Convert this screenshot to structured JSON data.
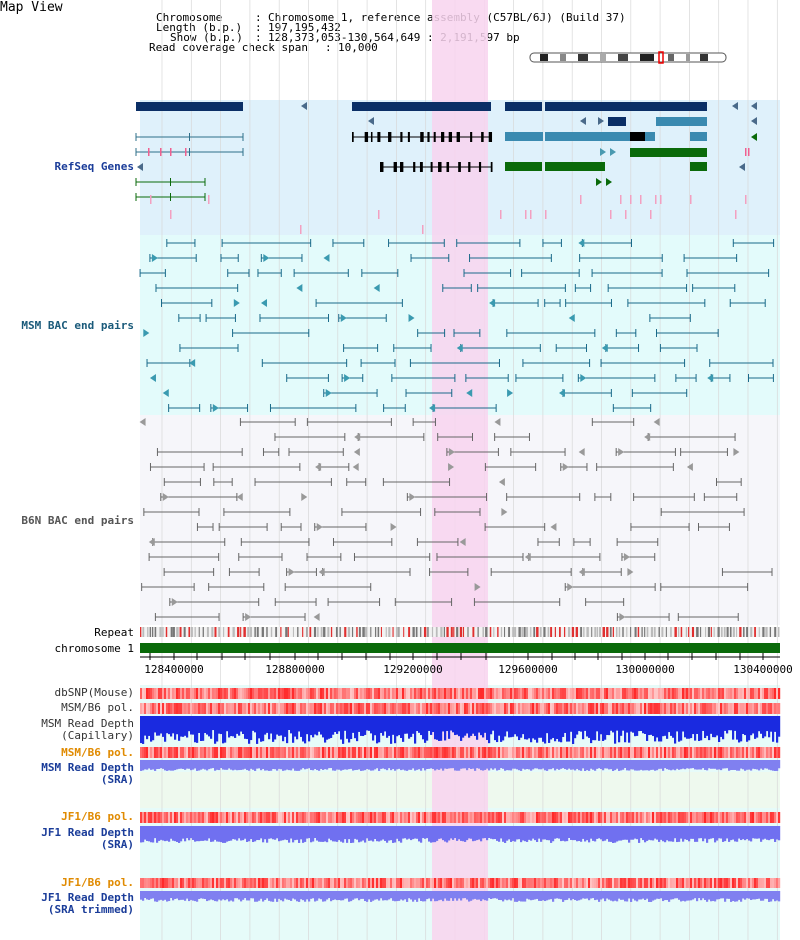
{
  "title": "Map View",
  "info": {
    "chromosome_label": "Chromosome",
    "chromosome_value": "Chromosome 1, reference assembly (C57BL/6J) (Build 37)",
    "length_label": "Length (b.p.)",
    "length_value": "197,195,432",
    "show_label": "Show (b.p.)",
    "show_value": "128,373,053-130,564,649 : 2,191,597 bp",
    "span_label": "Read coverage check span",
    "span_value": "10,000"
  },
  "tracks": {
    "refseq": "RefSeq Genes",
    "msm_bac": "MSM BAC end pairs",
    "b6n_bac": "B6N BAC end pairs",
    "repeat": "Repeat",
    "chromosome": "chromosome 1",
    "dbsnp": "dbSNP(Mouse)",
    "msm_b6_pol1": "MSM/B6 pol.",
    "msm_depth_cap_1": "MSM Read Depth",
    "msm_depth_cap_2": "(Capillary)",
    "msm_b6_pol2": "MSM/B6 pol.",
    "msm_depth_sra_1": "MSM Read Depth",
    "msm_depth_sra_2": "(SRA)",
    "jf1_pol": "JF1/B6 pol.",
    "jf1_depth_1": "JF1 Read Depth",
    "jf1_depth_2": "(SRA)",
    "jf1_pol2": "JF1/B6 pol.",
    "jf1_trim_1": "JF1 Read Depth",
    "jf1_trim_2": "(SRA trimmed)"
  },
  "axis_ticks": [
    "128400000",
    "128800000",
    "129200000",
    "129600000",
    "130000000",
    "130400000"
  ],
  "colors": {
    "refseq_bg": "#dff1fb",
    "msm_bg": "#e3fbfb",
    "b6n_bg": "#f6f6fa",
    "highlight": "#f8d4ee",
    "navy": "#0b2f66",
    "teal": "#2e6f8a",
    "green": "#0a6a0a",
    "gray_line": "#555555",
    "label_blue": "#1a3c99",
    "label_orange": "#e08a00"
  }
}
